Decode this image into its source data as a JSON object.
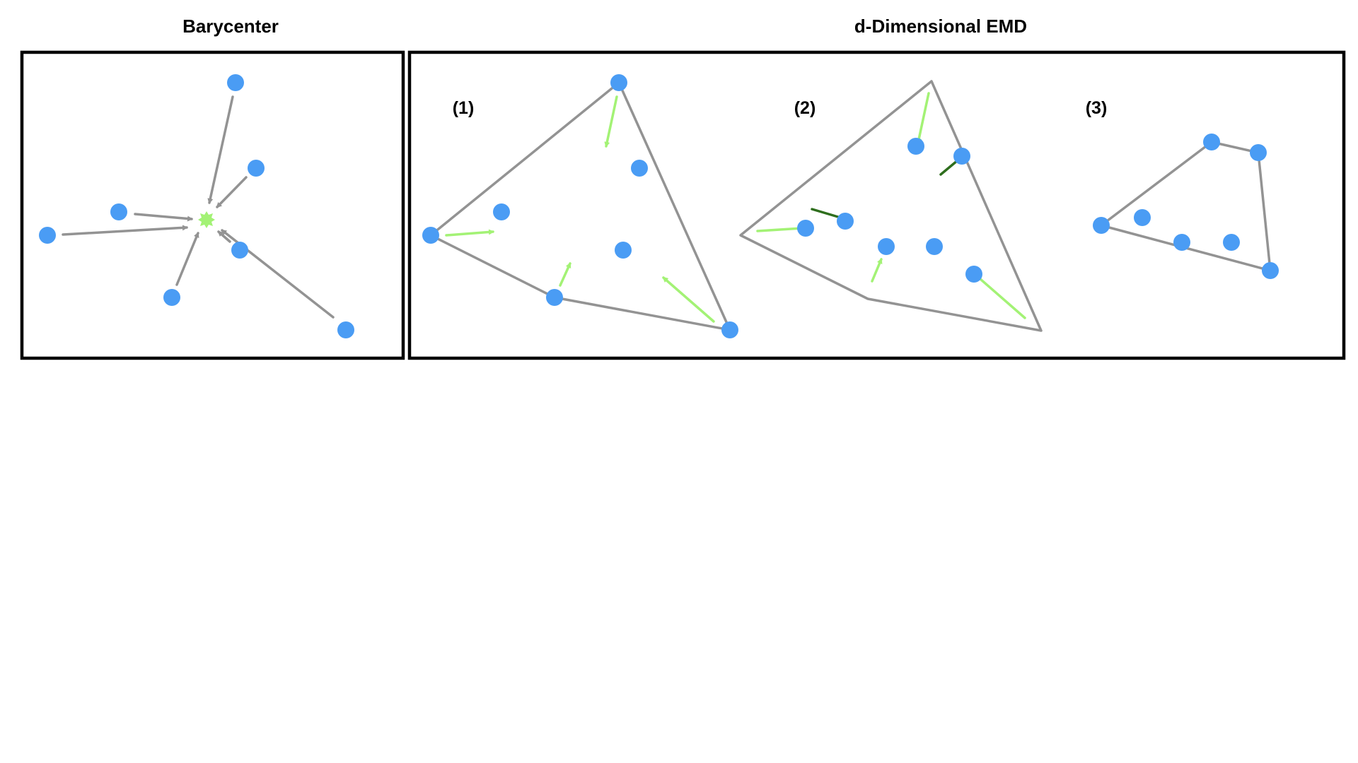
{
  "titles": {
    "barycenter": "Barycenter",
    "emd": "d-Dimensional EMD"
  },
  "step_labels": {
    "step1": "(1)",
    "step2": "(2)",
    "step3": "(3)"
  },
  "colors": {
    "point": "#4a9cf4",
    "arrow_gray": "#939393",
    "arrow_light_green": "#a3f275",
    "arrow_dark_green": "#2e6e1d",
    "hull": "#939393",
    "barycenter_marker": "#a3f275",
    "frame": "#000000"
  },
  "icons": {
    "point": "point-icon",
    "barycenter": "barycenter-star-icon",
    "arrow": "arrow-icon"
  }
}
